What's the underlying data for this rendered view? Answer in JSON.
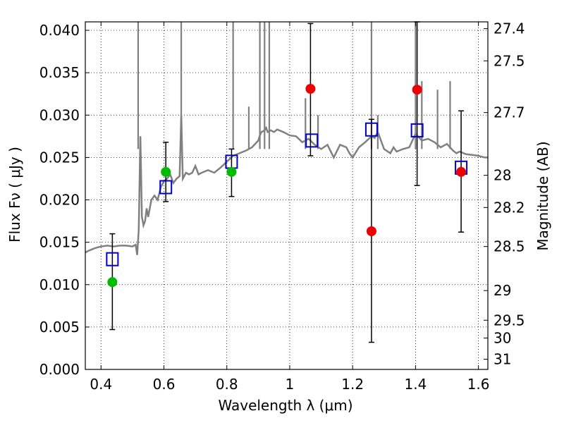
{
  "chart_data": {
    "type": "scatter",
    "title": "",
    "xlabel": "Wavelength  λ (μm)",
    "ylabel": "Flux  Fν  ( μJy )",
    "y2label": "Magnitude (AB)",
    "xlim": [
      0.35,
      1.63
    ],
    "ylim": [
      0.0,
      0.041
    ],
    "grid": true,
    "x_ticks": [
      0.4,
      0.6,
      0.8,
      1.0,
      1.2,
      1.4,
      1.6
    ],
    "x_tick_labels": [
      "0.4",
      "0.6",
      "0.8",
      "1",
      "1.2",
      "1.4",
      "1.6"
    ],
    "y_ticks": [
      0.0,
      0.005,
      0.01,
      0.015,
      0.02,
      0.025,
      0.03,
      0.035,
      0.04
    ],
    "y_tick_labels": [
      "0.000",
      "0.005",
      "0.010",
      "0.015",
      "0.020",
      "0.025",
      "0.030",
      "0.035",
      "0.040"
    ],
    "y2_ticks": [
      {
        "label": "27.4",
        "flux": 0.0402
      },
      {
        "label": "27.5",
        "flux": 0.0364
      },
      {
        "label": "27.7",
        "flux": 0.0303
      },
      {
        "label": "28",
        "flux": 0.0229
      },
      {
        "label": "28.2",
        "flux": 0.0191
      },
      {
        "label": "28.5",
        "flux": 0.0145
      },
      {
        "label": "29",
        "flux": 0.0093
      },
      {
        "label": "29.5",
        "flux": 0.0058
      },
      {
        "label": "30",
        "flux": 0.0037
      },
      {
        "label": "31",
        "flux": 0.0012
      }
    ],
    "colors": {
      "model": "#808080",
      "model_points": "#0000cc",
      "green": "#00bb00",
      "red": "#ee0000",
      "error_bar": "#000000"
    },
    "series": [
      {
        "kind": "spectrum",
        "x": [
          0.35,
          0.36,
          0.38,
          0.4,
          0.42,
          0.44,
          0.46,
          0.48,
          0.5,
          0.51,
          0.515,
          0.52,
          0.525,
          0.53,
          0.535,
          0.54,
          0.545,
          0.55,
          0.56,
          0.57,
          0.58,
          0.59,
          0.6,
          0.61,
          0.62,
          0.63,
          0.64,
          0.65,
          0.655,
          0.66,
          0.67,
          0.68,
          0.69,
          0.7,
          0.705,
          0.71,
          0.72,
          0.74,
          0.76,
          0.78,
          0.8,
          0.82,
          0.84,
          0.86,
          0.88,
          0.9,
          0.905,
          0.91,
          0.92,
          0.925,
          0.93,
          0.94,
          0.95,
          0.96,
          0.98,
          1.0,
          1.02,
          1.04,
          1.06,
          1.08,
          1.1,
          1.12,
          1.14,
          1.16,
          1.18,
          1.19,
          1.2,
          1.22,
          1.24,
          1.26,
          1.27,
          1.28,
          1.3,
          1.32,
          1.33,
          1.34,
          1.36,
          1.38,
          1.4,
          1.42,
          1.44,
          1.46,
          1.48,
          1.5,
          1.52,
          1.53,
          1.54,
          1.56,
          1.58,
          1.6,
          1.62,
          1.63
        ],
        "y": [
          0.0138,
          0.014,
          0.0143,
          0.0145,
          0.0146,
          0.0145,
          0.0146,
          0.0146,
          0.0145,
          0.0147,
          0.0135,
          0.0165,
          0.0275,
          0.018,
          0.017,
          0.0175,
          0.019,
          0.018,
          0.02,
          0.0205,
          0.02,
          0.0215,
          0.0222,
          0.0225,
          0.023,
          0.022,
          0.0225,
          0.0228,
          0.03,
          0.0225,
          0.0232,
          0.023,
          0.0232,
          0.024,
          0.0235,
          0.023,
          0.0232,
          0.0235,
          0.0232,
          0.0238,
          0.0245,
          0.0252,
          0.0255,
          0.0258,
          0.0262,
          0.027,
          0.0276,
          0.028,
          0.0282,
          0.0285,
          0.028,
          0.0282,
          0.028,
          0.0283,
          0.028,
          0.0276,
          0.0275,
          0.0268,
          0.0272,
          0.0265,
          0.026,
          0.0265,
          0.025,
          0.0265,
          0.0262,
          0.0255,
          0.025,
          0.0262,
          0.0268,
          0.0275,
          0.0273,
          0.028,
          0.026,
          0.0255,
          0.0262,
          0.0257,
          0.026,
          0.0262,
          0.0278,
          0.027,
          0.0272,
          0.0268,
          0.0262,
          0.0266,
          0.0258,
          0.0255,
          0.0257,
          0.0254,
          0.0253,
          0.0252,
          0.025,
          0.025
        ]
      },
      {
        "kind": "emission_spikes",
        "x": [
          0.518,
          0.655,
          0.82,
          0.87,
          0.905,
          0.92,
          0.935,
          1.05,
          1.09,
          1.26,
          1.28,
          1.4,
          1.42,
          1.47,
          1.51
        ],
        "y": [
          0.041,
          0.041,
          0.041,
          0.031,
          0.041,
          0.041,
          0.041,
          0.032,
          0.03,
          0.041,
          0.03,
          0.041,
          0.034,
          0.033,
          0.034
        ]
      },
      {
        "kind": "model_points",
        "x": [
          0.436,
          0.606,
          0.815,
          1.07,
          1.26,
          1.405,
          1.545
        ],
        "y": [
          0.013,
          0.0215,
          0.0245,
          0.027,
          0.0283,
          0.0282,
          0.0238
        ]
      },
      {
        "kind": "measurements_green",
        "x": [
          0.436,
          0.606,
          0.815
        ],
        "y": [
          0.0103,
          0.0233,
          0.0233
        ],
        "err_low": [
          0.0047,
          0.0198,
          0.0204
        ],
        "err_high": [
          0.016,
          0.0268,
          0.026
        ]
      },
      {
        "kind": "measurements_red",
        "x": [
          1.066,
          1.26,
          1.405,
          1.545
        ],
        "y": [
          0.0331,
          0.0163,
          0.033,
          0.0233
        ],
        "err_low": [
          0.0252,
          0.0032,
          0.0217,
          0.0162
        ],
        "err_high": [
          0.0408,
          0.0295,
          0.041,
          0.0305
        ]
      }
    ]
  }
}
